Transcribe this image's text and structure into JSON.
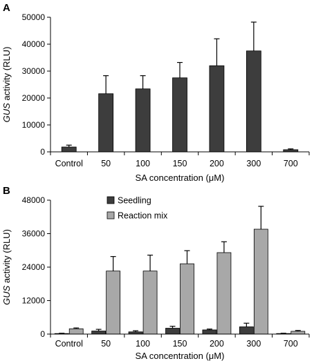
{
  "chart_data": [
    {
      "panel_label": "A",
      "type": "bar",
      "categories": [
        "Control",
        "50",
        "100",
        "150",
        "200",
        "300",
        "700"
      ],
      "series": [
        {
          "values": [
            1800,
            21600,
            23400,
            27500,
            32000,
            37500,
            800
          ],
          "errors": [
            700,
            6700,
            4900,
            5700,
            10000,
            10700,
            300
          ]
        }
      ],
      "ylabel_italic": "GUS",
      "ylabel_rest": " activity (RLU)",
      "xlabel": "SA concentration (μM)",
      "ylim": [
        0,
        50000
      ],
      "yticks": [
        "0",
        "10000",
        "20000",
        "30000",
        "40000",
        "50000"
      ],
      "colors": [
        "#3d3d3d"
      ],
      "grid": false,
      "legend": null
    },
    {
      "panel_label": "B",
      "type": "bar",
      "categories": [
        "Control",
        "50",
        "100",
        "150",
        "200",
        "300",
        "700"
      ],
      "series": [
        {
          "name": "Seedling",
          "values": [
            200,
            1100,
            800,
            2100,
            1500,
            2600,
            200
          ],
          "errors": [
            100,
            600,
            400,
            700,
            300,
            1300,
            100
          ]
        },
        {
          "name": "Reaction mix",
          "values": [
            1900,
            22600,
            22600,
            25200,
            29200,
            37600,
            1000
          ],
          "errors": [
            300,
            5200,
            5700,
            4700,
            3900,
            8200,
            300
          ]
        }
      ],
      "ylabel_italic": "GUS",
      "ylabel_rest": " activity (RLU)",
      "xlabel": "SA concentration (μM)",
      "ylim": [
        0,
        48000
      ],
      "yticks": [
        "0",
        "12000",
        "24000",
        "36000",
        "48000"
      ],
      "colors": [
        "#3d3d3d",
        "#a8a8a8"
      ],
      "grid": false,
      "legend": "top-left"
    }
  ]
}
